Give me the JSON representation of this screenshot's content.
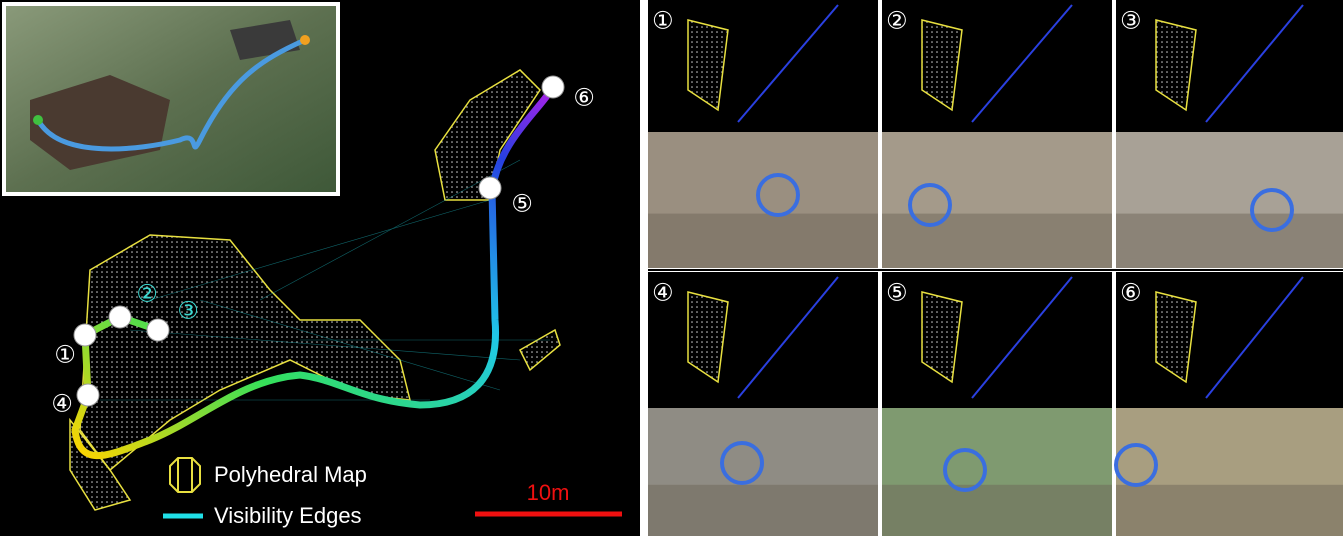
{
  "map": {
    "waypoints": [
      "①",
      "②",
      "③",
      "④",
      "⑤",
      "⑥"
    ],
    "legend": [
      "Polyhedral Map",
      "Visibility Edges"
    ],
    "scale_bar": "10m"
  },
  "panels": [
    {
      "label": "①"
    },
    {
      "label": "②"
    },
    {
      "label": "③"
    },
    {
      "label": "④"
    },
    {
      "label": "⑤"
    },
    {
      "label": "⑥"
    }
  ]
}
